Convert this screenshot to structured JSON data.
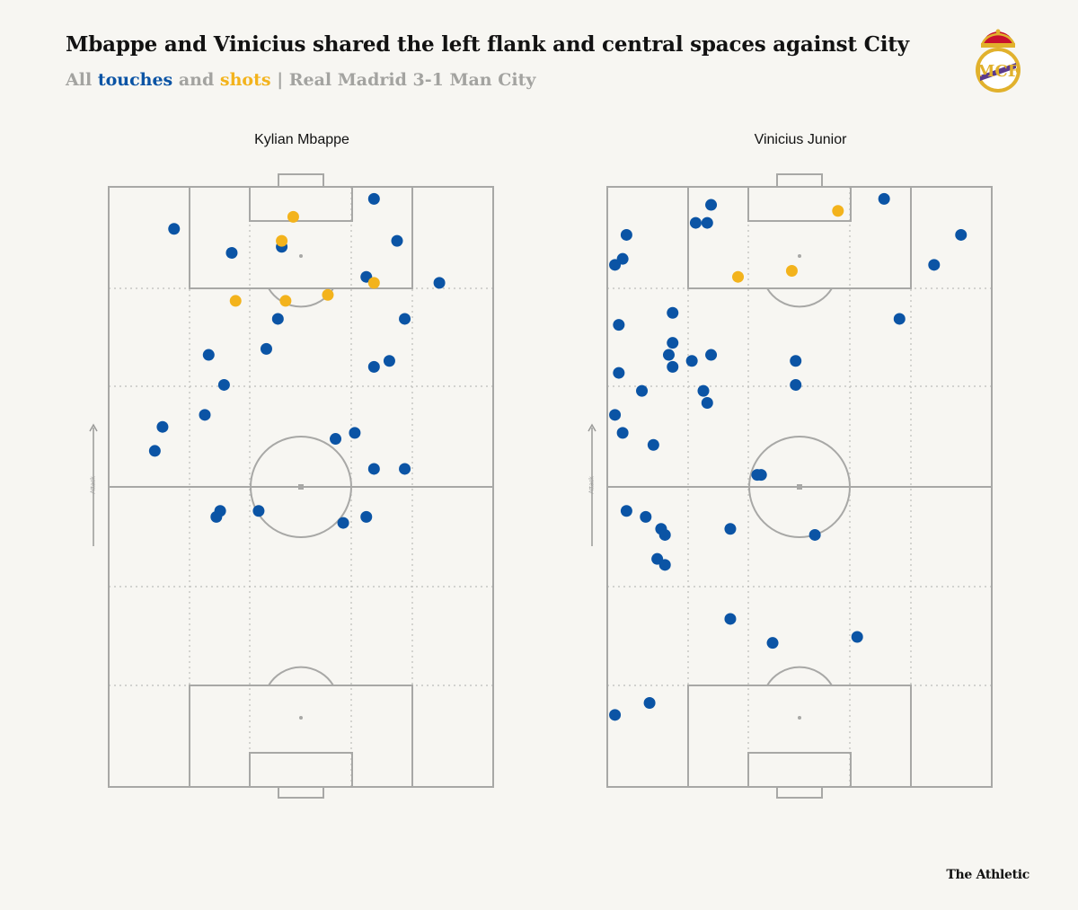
{
  "title": "Mbappe and Vinicius shared the left flank and central spaces against City",
  "subtitle": {
    "prefix": "All",
    "touches": "touches",
    "middle": "and",
    "shots": "shots",
    "suffix": "| Real Madrid 3-1 Man City"
  },
  "colors": {
    "touch": "#0b54a5",
    "shot": "#f3b31c",
    "pitch_line": "#a8a8a6",
    "background": "#f7f6f2"
  },
  "attack_label": "Attack",
  "brand": "The Athletic",
  "crest_icon": "real-madrid-crest",
  "chart_data": [
    {
      "type": "scatter",
      "title": "Kylian Mbappe",
      "x_range": [
        0,
        100
      ],
      "y_range": [
        0,
        100
      ],
      "series": [
        {
          "name": "touches",
          "points": [
            [
              69,
              98
            ],
            [
              17,
              93
            ],
            [
              32,
              89
            ],
            [
              45,
              90
            ],
            [
              75,
              91
            ],
            [
              67,
              85
            ],
            [
              86,
              84
            ],
            [
              44,
              78
            ],
            [
              77,
              78
            ],
            [
              26,
              72
            ],
            [
              41,
              73
            ],
            [
              73,
              71
            ],
            [
              69,
              70
            ],
            [
              30,
              67
            ],
            [
              25,
              62
            ],
            [
              14,
              60
            ],
            [
              12,
              56
            ],
            [
              64,
              59
            ],
            [
              59,
              58
            ],
            [
              69,
              53
            ],
            [
              77,
              53
            ],
            [
              29,
              46
            ],
            [
              28,
              45
            ],
            [
              39,
              46
            ],
            [
              61,
              44
            ],
            [
              67,
              45
            ]
          ]
        },
        {
          "name": "shots",
          "points": [
            [
              48,
              95
            ],
            [
              45,
              91
            ],
            [
              69,
              84
            ],
            [
              33,
              81
            ],
            [
              46,
              81
            ],
            [
              57,
              82
            ]
          ]
        }
      ]
    },
    {
      "type": "scatter",
      "title": "Vinicius Junior",
      "x_range": [
        0,
        100
      ],
      "y_range": [
        0,
        100
      ],
      "series": [
        {
          "name": "touches",
          "points": [
            [
              27,
              97
            ],
            [
              72,
              98
            ],
            [
              23,
              94
            ],
            [
              26,
              94
            ],
            [
              5,
              92
            ],
            [
              92,
              92
            ],
            [
              4,
              88
            ],
            [
              2,
              87
            ],
            [
              85,
              87
            ],
            [
              76,
              78
            ],
            [
              17,
              79
            ],
            [
              3,
              77
            ],
            [
              17,
              74
            ],
            [
              16,
              72
            ],
            [
              27,
              72
            ],
            [
              22,
              71
            ],
            [
              49,
              71
            ],
            [
              17,
              70
            ],
            [
              3,
              69
            ],
            [
              49,
              67
            ],
            [
              9,
              66
            ],
            [
              25,
              66
            ],
            [
              26,
              64
            ],
            [
              2,
              62
            ],
            [
              4,
              59
            ],
            [
              12,
              57
            ],
            [
              40,
              52
            ],
            [
              39,
              52
            ],
            [
              5,
              46
            ],
            [
              10,
              45
            ],
            [
              14,
              43
            ],
            [
              15,
              42
            ],
            [
              32,
              43
            ],
            [
              54,
              42
            ],
            [
              13,
              38
            ],
            [
              15,
              37
            ],
            [
              32,
              28
            ],
            [
              43,
              24
            ],
            [
              65,
              25
            ],
            [
              11,
              14
            ],
            [
              2,
              12
            ]
          ]
        },
        {
          "name": "shots",
          "points": [
            [
              60,
              96
            ],
            [
              34,
              85
            ],
            [
              48,
              86
            ]
          ]
        }
      ]
    }
  ]
}
